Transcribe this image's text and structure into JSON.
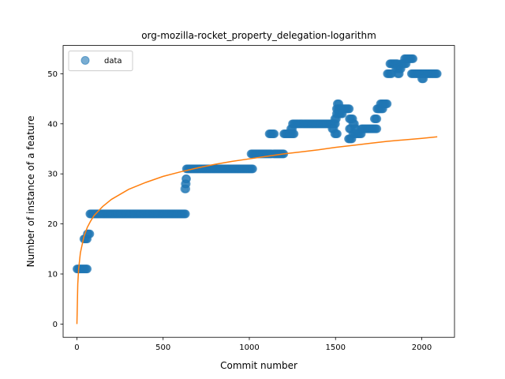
{
  "chart_data": {
    "type": "scatter",
    "title": "org-mozilla-rocket_property_delegation-logarithm",
    "xlabel": "Commit number",
    "ylabel": "Number of instance of a feature",
    "xlim": [
      -80,
      2190
    ],
    "ylim": [
      -2.65,
      55.65
    ],
    "xticks": [
      0,
      500,
      1000,
      1500,
      2000
    ],
    "yticks": [
      0,
      10,
      20,
      30,
      40,
      50
    ],
    "grid": false,
    "legend": {
      "placement": "upper left",
      "entries": [
        "data"
      ]
    },
    "colors": {
      "data": "#1f77b4",
      "fit": "#ff7f0e"
    },
    "series": [
      {
        "name": "data",
        "kind": "scatter",
        "segments": [
          {
            "x_start": 0,
            "x_end": 60,
            "y": 11
          },
          {
            "x_start": 40,
            "x_end": 60,
            "y": 17
          },
          {
            "x_start": 60,
            "x_end": 75,
            "y": 18
          },
          {
            "x_start": 75,
            "x_end": 630,
            "y": 22
          },
          {
            "x_start": 625,
            "x_end": 632,
            "y": 27
          },
          {
            "x_start": 628,
            "x_end": 634,
            "y": 28
          },
          {
            "x_start": 632,
            "x_end": 636,
            "y": 29
          },
          {
            "x_start": 635,
            "x_end": 1020,
            "y": 31
          },
          {
            "x_start": 1010,
            "x_end": 1130,
            "y": 34
          },
          {
            "x_start": 1115,
            "x_end": 1145,
            "y": 38
          },
          {
            "x_start": 1140,
            "x_end": 1200,
            "y": 34
          },
          {
            "x_start": 1200,
            "x_end": 1260,
            "y": 38
          },
          {
            "x_start": 1240,
            "x_end": 1250,
            "y": 39
          },
          {
            "x_start": 1250,
            "x_end": 1500,
            "y": 40
          },
          {
            "x_start": 1480,
            "x_end": 1490,
            "y": 39
          },
          {
            "x_start": 1495,
            "x_end": 1510,
            "y": 38
          },
          {
            "x_start": 1495,
            "x_end": 1505,
            "y": 41
          },
          {
            "x_start": 1505,
            "x_end": 1520,
            "y": 42
          },
          {
            "x_start": 1505,
            "x_end": 1520,
            "y": 43
          },
          {
            "x_start": 1510,
            "x_end": 1520,
            "y": 44
          },
          {
            "x_start": 1520,
            "x_end": 1580,
            "y": 43
          },
          {
            "x_start": 1520,
            "x_end": 1540,
            "y": 42
          },
          {
            "x_start": 1575,
            "x_end": 1595,
            "y": 37
          },
          {
            "x_start": 1580,
            "x_end": 1590,
            "y": 39
          },
          {
            "x_start": 1580,
            "x_end": 1600,
            "y": 41
          },
          {
            "x_start": 1600,
            "x_end": 1610,
            "y": 40
          },
          {
            "x_start": 1600,
            "x_end": 1650,
            "y": 38
          },
          {
            "x_start": 1610,
            "x_end": 1620,
            "y": 39
          },
          {
            "x_start": 1650,
            "x_end": 1740,
            "y": 39
          },
          {
            "x_start": 1725,
            "x_end": 1740,
            "y": 41
          },
          {
            "x_start": 1740,
            "x_end": 1775,
            "y": 43
          },
          {
            "x_start": 1760,
            "x_end": 1800,
            "y": 44
          },
          {
            "x_start": 1800,
            "x_end": 1825,
            "y": 50
          },
          {
            "x_start": 1815,
            "x_end": 1860,
            "y": 52
          },
          {
            "x_start": 1850,
            "x_end": 1880,
            "y": 51
          },
          {
            "x_start": 1860,
            "x_end": 1870,
            "y": 50
          },
          {
            "x_start": 1880,
            "x_end": 1910,
            "y": 52
          },
          {
            "x_start": 1900,
            "x_end": 1950,
            "y": 53
          },
          {
            "x_start": 1940,
            "x_end": 2090,
            "y": 50
          },
          {
            "x_start": 2000,
            "x_end": 2010,
            "y": 49
          }
        ]
      },
      {
        "name": "fit",
        "kind": "line",
        "x": [
          0,
          5,
          10,
          20,
          40,
          60,
          80,
          100,
          150,
          200,
          300,
          400,
          500,
          600,
          700,
          800,
          900,
          1000,
          1100,
          1200,
          1300,
          1400,
          1500,
          1600,
          1700,
          1800,
          1900,
          2000,
          2090
        ],
        "y": [
          0.0,
          8.0,
          11.0,
          14.2,
          17.4,
          19.3,
          20.6,
          21.7,
          23.5,
          24.9,
          26.9,
          28.3,
          29.5,
          30.4,
          31.2,
          31.9,
          32.5,
          33.0,
          33.5,
          34.0,
          34.4,
          34.8,
          35.3,
          35.7,
          36.1,
          36.5,
          36.8,
          37.1,
          37.4
        ]
      }
    ]
  }
}
